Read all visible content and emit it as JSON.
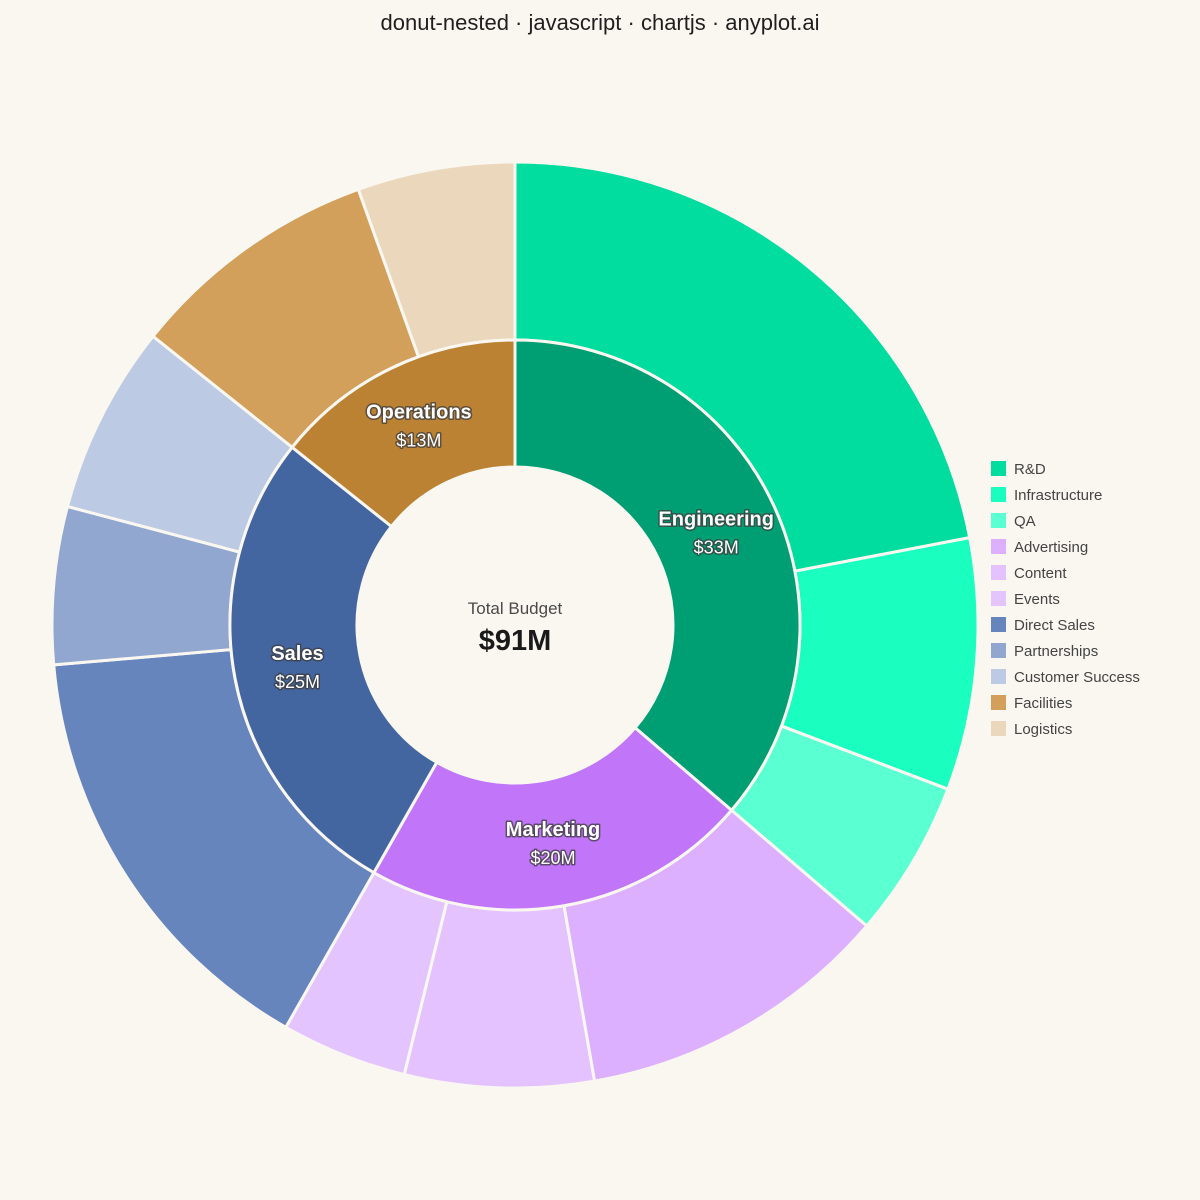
{
  "title": "donut-nested · javascript · chartjs · anyplot.ai",
  "center": {
    "label": "Total Budget",
    "value": "$91M"
  },
  "chart_data": {
    "type": "nested-donut",
    "title": "donut-nested · javascript · chartjs · anyplot.ai",
    "unit": "$M",
    "total": 91,
    "legend_position": "right",
    "inner": [
      {
        "name": "Engineering",
        "value": 33,
        "label": "$33M",
        "color": "#009E73"
      },
      {
        "name": "Marketing",
        "value": 20,
        "label": "$20M",
        "color": "#C175F9"
      },
      {
        "name": "Sales",
        "value": 25,
        "label": "$25M",
        "color": "#4466A0"
      },
      {
        "name": "Operations",
        "value": 13,
        "label": "$13M",
        "color": "#BC8234"
      }
    ],
    "outer": [
      {
        "name": "R&D",
        "parent": "Engineering",
        "value": 20,
        "color": "#00DD9E"
      },
      {
        "name": "Infrastructure",
        "parent": "Engineering",
        "value": 8,
        "color": "#1AFFC0"
      },
      {
        "name": "QA",
        "parent": "Engineering",
        "value": 5,
        "color": "#5AFFD2"
      },
      {
        "name": "Advertising",
        "parent": "Marketing",
        "value": 10,
        "color": "#DCB0FF"
      },
      {
        "name": "Content",
        "parent": "Marketing",
        "value": 6,
        "color": "#E3C2FF"
      },
      {
        "name": "Events",
        "parent": "Marketing",
        "value": 4,
        "color": "#E3C4FF"
      },
      {
        "name": "Direct Sales",
        "parent": "Sales",
        "value": 14,
        "color": "#6685BD"
      },
      {
        "name": "Partnerships",
        "parent": "Sales",
        "value": 5,
        "color": "#91A7CF"
      },
      {
        "name": "Customer Success",
        "parent": "Sales",
        "value": 6,
        "color": "#BCCAE3"
      },
      {
        "name": "Facilities",
        "parent": "Operations",
        "value": 8,
        "color": "#D3A05C"
      },
      {
        "name": "Logistics",
        "parent": "Operations",
        "value": 5,
        "color": "#EBD7BC"
      }
    ]
  }
}
